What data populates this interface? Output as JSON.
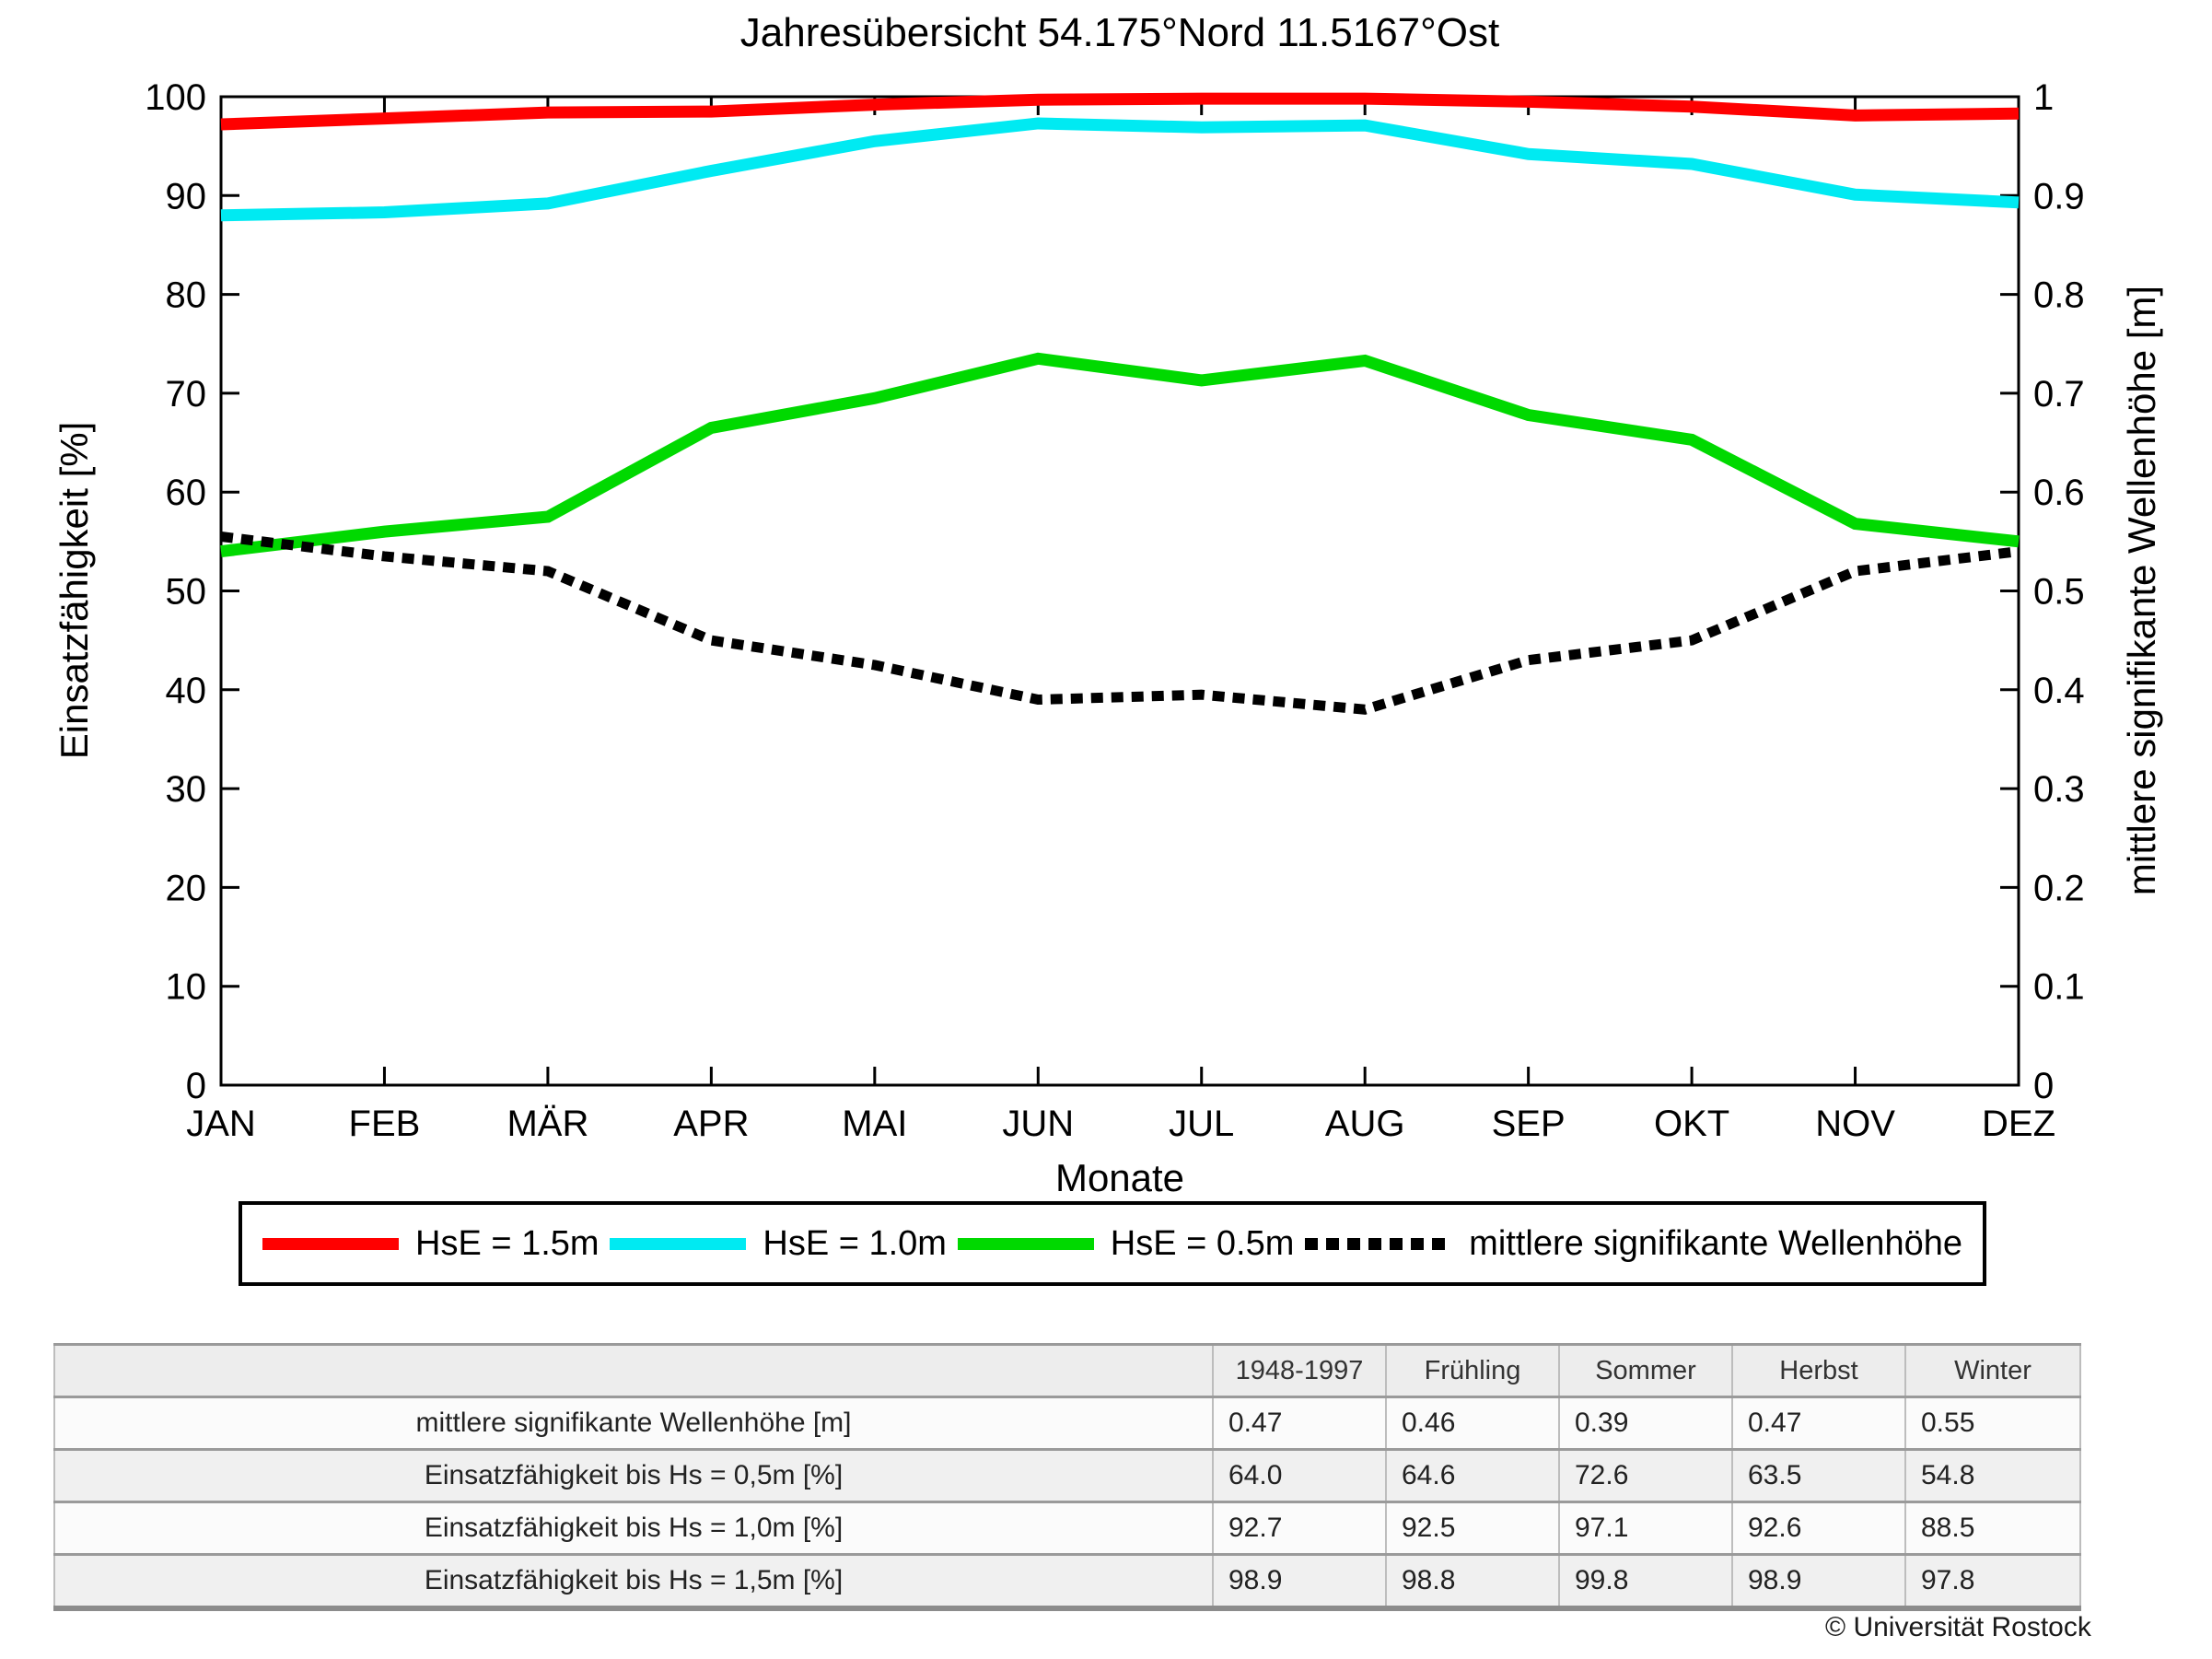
{
  "title": "Jahresübersicht  54.175°Nord  11.5167°Ost",
  "chart_data": {
    "type": "line",
    "x_categories": [
      "JAN",
      "FEB",
      "MÄR",
      "APR",
      "MAI",
      "JUN",
      "JUL",
      "AUG",
      "SEP",
      "OKT",
      "NOV",
      "DEZ"
    ],
    "xlabel": "Monate",
    "grid": false,
    "legend_position": "bottom",
    "left_axis": {
      "label": "Einsatzfähigkeit [%]",
      "min": 0,
      "max": 100,
      "tick_step": 10
    },
    "right_axis": {
      "label": "mittlere signifikante Wellenhöhe [m]",
      "min": 0,
      "max": 1,
      "tick_step": 0.1
    },
    "series": [
      {
        "name": "HsE = 1.5m",
        "color": "#ff0000",
        "style": "solid",
        "axis": "left",
        "values": [
          97.2,
          97.8,
          98.4,
          98.5,
          99.2,
          99.7,
          99.8,
          99.8,
          99.5,
          99.0,
          98.1,
          98.3
        ]
      },
      {
        "name": "HsE = 1.0m",
        "color": "#00eaf2",
        "style": "solid",
        "axis": "left",
        "values": [
          88.0,
          88.3,
          89.2,
          92.5,
          95.5,
          97.3,
          96.9,
          97.1,
          94.2,
          93.2,
          90.1,
          89.3
        ]
      },
      {
        "name": "HsE = 0.5m",
        "color": "#00d900",
        "style": "solid",
        "axis": "left",
        "values": [
          54.0,
          56.0,
          57.5,
          66.5,
          69.5,
          73.5,
          71.3,
          73.3,
          67.8,
          65.3,
          56.8,
          55.0
        ]
      },
      {
        "name": "mittlere signifikante Wellenhöhe",
        "color": "#000000",
        "style": "dotted",
        "axis": "right",
        "values": [
          0.555,
          0.535,
          0.52,
          0.45,
          0.425,
          0.39,
          0.395,
          0.38,
          0.43,
          0.45,
          0.52,
          0.54
        ]
      }
    ]
  },
  "table": {
    "column_headers": [
      "",
      "1948-1997",
      "Frühling",
      "Sommer",
      "Herbst",
      "Winter"
    ],
    "rows": [
      {
        "label": "mittlere signifikante Wellenhöhe [m]",
        "values": [
          "0.47",
          "0.46",
          "0.39",
          "0.47",
          "0.55"
        ]
      },
      {
        "label": "Einsatzfähigkeit bis Hs = 0,5m [%]",
        "values": [
          "64.0",
          "64.6",
          "72.6",
          "63.5",
          "54.8"
        ]
      },
      {
        "label": "Einsatzfähigkeit bis Hs = 1,0m [%]",
        "values": [
          "92.7",
          "92.5",
          "97.1",
          "92.6",
          "88.5"
        ]
      },
      {
        "label": "Einsatzfähigkeit bis Hs = 1,5m [%]",
        "values": [
          "98.9",
          "98.8",
          "99.8",
          "98.9",
          "97.8"
        ]
      }
    ]
  },
  "footer": {
    "copyright": "© Universität Rostock"
  }
}
